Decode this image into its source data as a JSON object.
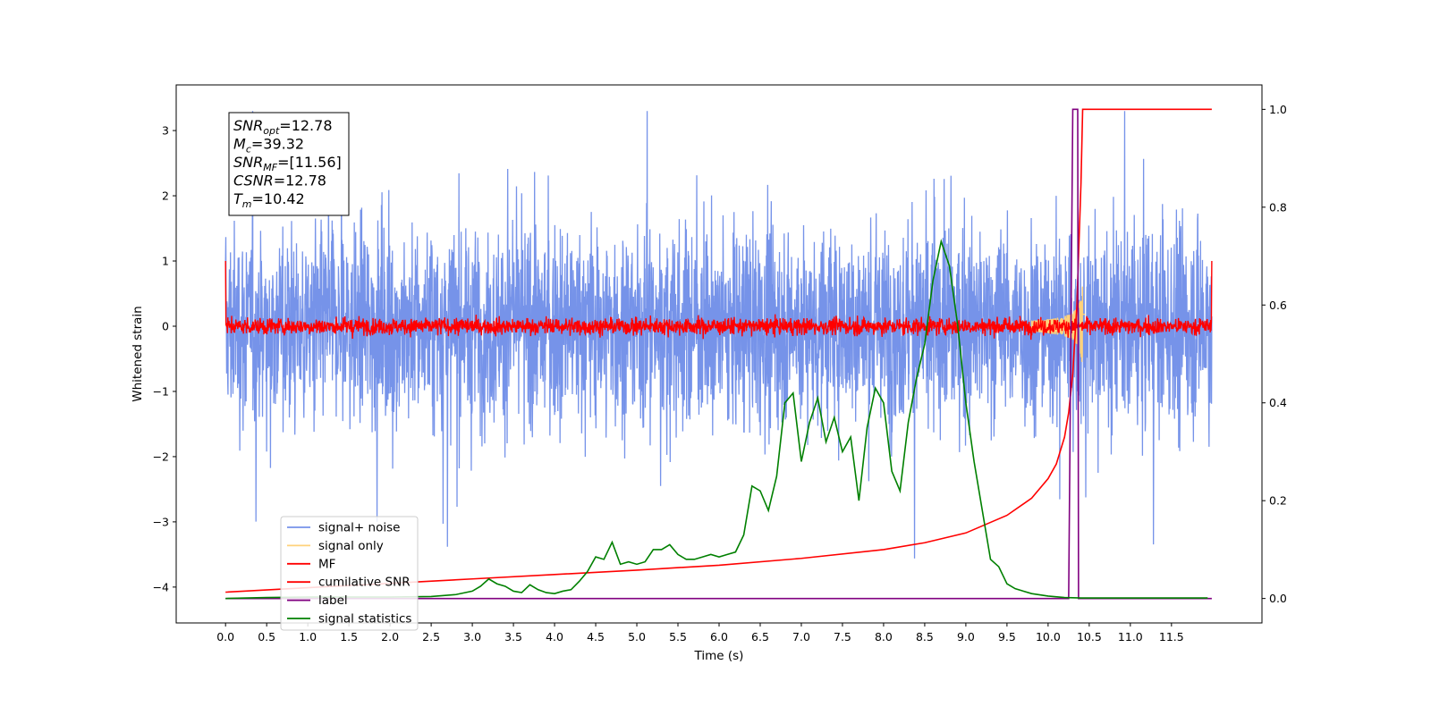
{
  "chart_data": {
    "type": "line",
    "xlabel": "Time (s)",
    "ylabel_left": "Whitened strain",
    "ylabel_right": "",
    "xlim": [
      -0.6,
      12.6
    ],
    "ylim_left": [
      -4.55,
      3.7
    ],
    "ylim_right": [
      -0.05,
      1.05
    ],
    "x_ticks": [
      0.0,
      0.5,
      1.0,
      1.5,
      2.0,
      2.5,
      3.0,
      3.5,
      4.0,
      4.5,
      5.0,
      5.5,
      6.0,
      6.5,
      7.0,
      7.5,
      8.0,
      8.5,
      9.0,
      9.5,
      10.0,
      10.5,
      11.0,
      11.5
    ],
    "x_tick_labels": [
      "0.0",
      "0.5",
      "1.0",
      "1.5",
      "2.0",
      "2.5",
      "3.0",
      "3.5",
      "4.0",
      "4.5",
      "5.0",
      "5.5",
      "6.0",
      "6.5",
      "7.0",
      "7.5",
      "8.0",
      "8.5",
      "9.0",
      "9.5",
      "10.0",
      "10.5",
      "11.0",
      "11.5"
    ],
    "y_left_ticks": [
      3,
      2,
      1,
      0,
      -1,
      -2,
      -3,
      -4
    ],
    "y_left_tick_labels": [
      "3",
      "2",
      "1",
      "0",
      "−1",
      "−2",
      "−3",
      "−4"
    ],
    "y_right_ticks": [
      1.0,
      0.8,
      0.6,
      0.4,
      0.2,
      0.0
    ],
    "y_right_tick_labels": [
      "1.0",
      "0.8",
      "0.6",
      "0.4",
      "0.2",
      "0.0"
    ],
    "grid": false,
    "legend_position": "lower-left",
    "annotation": {
      "lines": [
        {
          "main": "SNR",
          "sub": "opt",
          "value": "=12.78"
        },
        {
          "main": "M",
          "sub": "c",
          "value": "=39.32"
        },
        {
          "main": "SNR",
          "sub": "MF",
          "value": "=[11.56]"
        },
        {
          "main": "CSNR",
          "sub": "",
          "value": "=12.78"
        },
        {
          "main": "T",
          "sub": "m",
          "value": "=10.42"
        }
      ]
    },
    "series": [
      {
        "name": "signal+ noise",
        "axis": "left",
        "color": "#4169e1",
        "style": "noise",
        "center": 0.0,
        "amplitude_typical": 1.3,
        "amplitude_peak": 3.3,
        "x_range": [
          0.0,
          11.99
        ]
      },
      {
        "name": "signal only",
        "axis": "left",
        "color": "#ffd27a",
        "style": "chirp",
        "peak_time": 10.42,
        "peak_amplitude": 0.7
      },
      {
        "name": "MF",
        "axis": "left",
        "color": "#ff0000",
        "style": "noise",
        "center": 0.0,
        "amplitude_typical": 0.12,
        "edge_value": 1.0
      },
      {
        "name": "cumilative SNR",
        "axis": "right",
        "color": "#ff0000",
        "x": [
          0.0,
          1.0,
          2.0,
          3.0,
          4.0,
          5.0,
          6.0,
          7.0,
          8.0,
          8.5,
          9.0,
          9.5,
          9.8,
          10.0,
          10.1,
          10.2,
          10.25,
          10.3,
          10.35,
          10.4,
          10.42,
          10.45,
          10.5,
          11.0,
          11.5,
          11.99
        ],
        "y": [
          0.013,
          0.022,
          0.031,
          0.04,
          0.049,
          0.058,
          0.068,
          0.082,
          0.1,
          0.114,
          0.134,
          0.17,
          0.205,
          0.245,
          0.275,
          0.33,
          0.38,
          0.46,
          0.6,
          0.85,
          1.0,
          1.0,
          1.0,
          1.0,
          1.0,
          1.0
        ]
      },
      {
        "name": "label",
        "axis": "right",
        "color": "#800080",
        "x": [
          0.0,
          10.25,
          10.3,
          10.36,
          10.37,
          11.99
        ],
        "y": [
          0.0,
          0.0,
          1.0,
          1.0,
          0.0,
          0.0
        ]
      },
      {
        "name": "signal statistics",
        "axis": "right",
        "color": "#008000",
        "x": [
          0.0,
          0.5,
          1.0,
          1.5,
          2.0,
          2.5,
          2.8,
          3.0,
          3.1,
          3.2,
          3.3,
          3.4,
          3.5,
          3.6,
          3.7,
          3.8,
          3.9,
          4.0,
          4.1,
          4.2,
          4.3,
          4.4,
          4.5,
          4.6,
          4.7,
          4.8,
          4.9,
          5.0,
          5.1,
          5.2,
          5.3,
          5.4,
          5.5,
          5.6,
          5.7,
          5.8,
          5.9,
          6.0,
          6.1,
          6.2,
          6.3,
          6.4,
          6.5,
          6.6,
          6.7,
          6.8,
          6.9,
          7.0,
          7.1,
          7.2,
          7.3,
          7.4,
          7.5,
          7.6,
          7.7,
          7.8,
          7.9,
          8.0,
          8.1,
          8.2,
          8.3,
          8.4,
          8.5,
          8.6,
          8.7,
          8.8,
          8.9,
          9.0,
          9.1,
          9.2,
          9.3,
          9.4,
          9.5,
          9.6,
          9.8,
          10.0,
          10.2,
          10.4,
          11.0,
          11.5,
          11.94
        ],
        "y": [
          0.0,
          0.002,
          0.003,
          0.003,
          0.003,
          0.004,
          0.008,
          0.015,
          0.025,
          0.04,
          0.03,
          0.025,
          0.015,
          0.012,
          0.028,
          0.018,
          0.012,
          0.01,
          0.015,
          0.018,
          0.035,
          0.055,
          0.085,
          0.08,
          0.115,
          0.07,
          0.075,
          0.07,
          0.075,
          0.1,
          0.1,
          0.11,
          0.09,
          0.08,
          0.08,
          0.085,
          0.09,
          0.085,
          0.09,
          0.095,
          0.13,
          0.23,
          0.22,
          0.18,
          0.25,
          0.4,
          0.42,
          0.28,
          0.36,
          0.41,
          0.32,
          0.37,
          0.3,
          0.33,
          0.2,
          0.35,
          0.43,
          0.4,
          0.26,
          0.22,
          0.36,
          0.45,
          0.52,
          0.65,
          0.73,
          0.68,
          0.56,
          0.4,
          0.28,
          0.18,
          0.08,
          0.065,
          0.03,
          0.02,
          0.01,
          0.005,
          0.002,
          0.001,
          0.001,
          0.001,
          0.001
        ]
      }
    ]
  }
}
